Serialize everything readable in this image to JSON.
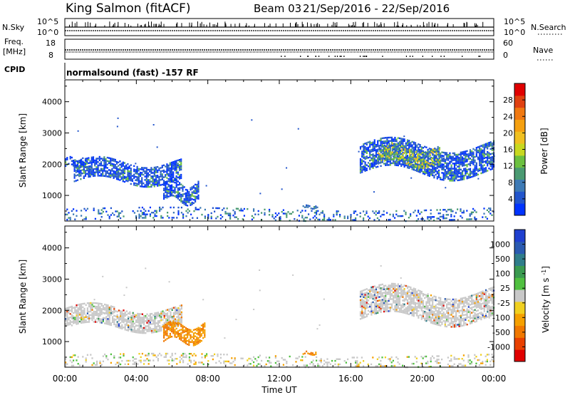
{
  "header": {
    "station": "King Salmon (fitACF)",
    "beam": "Beam 03",
    "date_range": "21/Sep/2016 - 22/Sep/2016"
  },
  "strips": {
    "nsky": {
      "label": "N.Sky",
      "ticks": [
        "10^5",
        "10^0"
      ]
    },
    "nsearch": {
      "label": "N.Search",
      "ticks": [
        "10^5",
        "10^0"
      ]
    },
    "freq": {
      "label_line1": "Freq.",
      "label_line2": "[MHz]",
      "ticks": [
        "18",
        "8"
      ]
    },
    "nave": {
      "label": "Nave",
      "ticks": [
        "60",
        "0"
      ]
    },
    "cpid": {
      "label": "CPID",
      "mode": "normalsound (fast) -157 RF"
    }
  },
  "chart_data": [
    {
      "type": "heatmap",
      "name": "power",
      "ylabel": "Slant Range [km]",
      "xlabel": "Time UT",
      "ylim": [
        180,
        4700
      ],
      "y_ticks": [
        "1000",
        "2000",
        "3000",
        "4000"
      ],
      "x_ticks": [
        "00:00",
        "04:00",
        "08:00",
        "12:00",
        "16:00",
        "20:00",
        "00:00"
      ],
      "colorbar": {
        "label": "Power [dB]",
        "ticks": [
          "4",
          "8",
          "12",
          "16",
          "20",
          "24",
          "28"
        ],
        "colors": [
          "#0033ff",
          "#2255cc",
          "#3d7ab5",
          "#4a9a72",
          "#6cc040",
          "#c8d820",
          "#f0c020",
          "#f5a010",
          "#f07810",
          "#e04010",
          "#e00000"
        ]
      },
      "echo_regions": [
        {
          "t_start": 0.0,
          "t_end": 1.0,
          "r_min": 1900,
          "r_max": 2300,
          "level": "low"
        },
        {
          "t_start": 0.5,
          "t_end": 6.5,
          "r_min": 1300,
          "r_max": 2300,
          "level": "low"
        },
        {
          "t_start": 5.5,
          "t_end": 7.5,
          "r_min": 700,
          "r_max": 1600,
          "level": "low"
        },
        {
          "t_start": 13.3,
          "t_end": 14.1,
          "r_min": 600,
          "r_max": 760,
          "level": "medium"
        },
        {
          "t_start": 16.5,
          "t_end": 24.0,
          "r_min": 1500,
          "r_max": 2900,
          "level": "low"
        },
        {
          "t_start": 17.5,
          "t_end": 21.0,
          "r_min": 1900,
          "r_max": 2700,
          "level": "high"
        },
        {
          "t_start": 0.0,
          "t_end": 24.0,
          "r_min": 250,
          "r_max": 600,
          "level": "ground"
        }
      ]
    },
    {
      "type": "heatmap",
      "name": "velocity",
      "ylabel": "Slant Range [km]",
      "xlabel": "Time UT",
      "ylim": [
        180,
        4700
      ],
      "y_ticks": [
        "1000",
        "2000",
        "3000",
        "4000"
      ],
      "x_ticks": [
        "00:00",
        "04:00",
        "08:00",
        "12:00",
        "16:00",
        "20:00",
        "00:00"
      ],
      "colorbar": {
        "label": "Velocity [m s^-1]",
        "ticks": [
          "1000",
          "500",
          "100",
          "25",
          "-25",
          "-100",
          "-500",
          "-1000"
        ],
        "colors": [
          "#1f3fcf",
          "#2a5ab0",
          "#2f7d8a",
          "#3a9a50",
          "#50c040",
          "#c8c8c8",
          "#f0d020",
          "#f5a000",
          "#f07800",
          "#e84000",
          "#e00000"
        ]
      },
      "echo_regions": [
        {
          "t_start": 0.0,
          "t_end": 6.5,
          "r_min": 1300,
          "r_max": 2300,
          "level": "near-zero"
        },
        {
          "t_start": 5.5,
          "t_end": 7.8,
          "r_min": 900,
          "r_max": 1700,
          "level": "-100 to -500"
        },
        {
          "t_start": 13.3,
          "t_end": 14.1,
          "r_min": 600,
          "r_max": 760,
          "level": "-100"
        },
        {
          "t_start": 16.5,
          "t_end": 24.0,
          "r_min": 1500,
          "r_max": 2900,
          "level": "near-zero"
        },
        {
          "t_start": 0.0,
          "t_end": 24.0,
          "r_min": 250,
          "r_max": 600,
          "level": "ground"
        }
      ]
    }
  ]
}
